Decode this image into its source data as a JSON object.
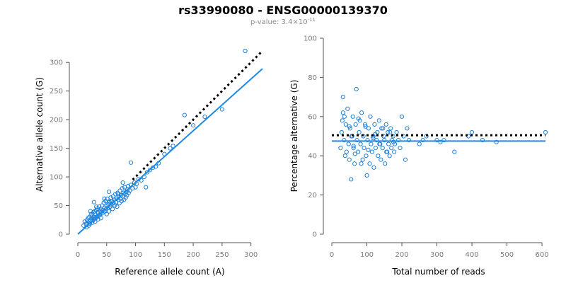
{
  "title": "rs33990080 - ENSG00000139370",
  "subtitle": {
    "prefix": "p-value: 3.4×10",
    "exponent": "-11"
  },
  "colors": {
    "points": "#1e7fd6",
    "fit": "#1e88e5",
    "reference": "#000000"
  },
  "chart_data": [
    {
      "type": "scatter",
      "xlabel": "Reference allele count (A)",
      "ylabel": "Alternative allele count (G)",
      "xlim": [
        0,
        320
      ],
      "ylim": [
        0,
        320
      ],
      "xticks": [
        0,
        50,
        100,
        150,
        200,
        250,
        300
      ],
      "yticks": [
        0,
        50,
        100,
        150,
        200,
        250,
        300
      ],
      "grid": false,
      "points": {
        "x": [
          10,
          12,
          14,
          15,
          16,
          17,
          18,
          19,
          20,
          20,
          21,
          22,
          23,
          24,
          25,
          25,
          26,
          27,
          28,
          28,
          29,
          30,
          30,
          31,
          32,
          33,
          34,
          35,
          35,
          36,
          37,
          38,
          39,
          40,
          40,
          41,
          42,
          43,
          44,
          45,
          46,
          47,
          48,
          49,
          50,
          50,
          51,
          52,
          53,
          54,
          55,
          56,
          57,
          58,
          59,
          60,
          61,
          62,
          63,
          64,
          65,
          66,
          67,
          68,
          69,
          70,
          71,
          72,
          73,
          74,
          75,
          76,
          77,
          78,
          79,
          80,
          81,
          82,
          83,
          84,
          85,
          86,
          87,
          88,
          90,
          92,
          95,
          98,
          100,
          102,
          105,
          110,
          115,
          120,
          125,
          130,
          135,
          140,
          150,
          160,
          165,
          185,
          200,
          220,
          250,
          290,
          28,
          32,
          22,
          46,
          54,
          58,
          70,
          78,
          92,
          118
        ],
        "y": [
          15,
          22,
          18,
          12,
          25,
          20,
          28,
          15,
          22,
          30,
          18,
          25,
          35,
          28,
          20,
          32,
          24,
          38,
          26,
          30,
          40,
          22,
          36,
          28,
          42,
          30,
          45,
          26,
          38,
          32,
          48,
          34,
          40,
          28,
          44,
          36,
          50,
          42,
          38,
          55,
          46,
          40,
          58,
          44,
          35,
          50,
          62,
          46,
          52,
          40,
          56,
          48,
          64,
          52,
          58,
          44,
          66,
          54,
          60,
          50,
          70,
          56,
          62,
          48,
          72,
          60,
          66,
          54,
          76,
          62,
          68,
          58,
          80,
          66,
          72,
          60,
          82,
          70,
          64,
          74,
          68,
          78,
          84,
          72,
          76,
          86,
          80,
          90,
          82,
          88,
          96,
          94,
          100,
          108,
          112,
          116,
          118,
          124,
          140,
          150,
          154,
          208,
          190,
          205,
          218,
          320,
          56,
          48,
          40,
          62,
          74,
          58,
          70,
          90,
          125,
          82
        ]
      },
      "fit_line": {
        "x": [
          0,
          320
        ],
        "y": [
          0,
          289
        ]
      },
      "reference_line": {
        "x": [
          95,
          320
        ],
        "y": [
          95,
          320
        ]
      }
    },
    {
      "type": "scatter",
      "xlabel": "Total number of reads",
      "ylabel": "Percentage alternative (G)",
      "xlim": [
        0,
        610
      ],
      "ylim": [
        0,
        100
      ],
      "xticks": [
        0,
        100,
        200,
        300,
        400,
        500,
        600
      ],
      "yticks": [
        0,
        20,
        40,
        60,
        80,
        100
      ],
      "grid": false,
      "points": {
        "x": [
          25,
          28,
          30,
          32,
          35,
          38,
          40,
          42,
          45,
          48,
          50,
          52,
          55,
          58,
          60,
          62,
          65,
          68,
          70,
          72,
          75,
          78,
          80,
          82,
          85,
          88,
          90,
          92,
          95,
          98,
          100,
          102,
          105,
          108,
          110,
          112,
          115,
          118,
          120,
          122,
          125,
          128,
          130,
          132,
          135,
          138,
          140,
          142,
          145,
          148,
          150,
          152,
          155,
          158,
          160,
          162,
          165,
          168,
          170,
          172,
          175,
          178,
          180,
          185,
          190,
          195,
          200,
          205,
          210,
          215,
          220,
          250,
          260,
          270,
          300,
          310,
          320,
          350,
          390,
          400,
          430,
          470,
          610,
          32,
          36,
          50,
          56,
          62,
          66,
          76,
          84,
          96,
          104,
          118,
          124,
          136,
          146,
          156,
          166,
          176
        ],
        "y": [
          44,
          52,
          58,
          62,
          48,
          40,
          56,
          42,
          64,
          46,
          38,
          54,
          28,
          50,
          60,
          44,
          36,
          56,
          74,
          48,
          42,
          52,
          58,
          46,
          62,
          38,
          50,
          44,
          56,
          40,
          30,
          48,
          54,
          36,
          60,
          46,
          42,
          50,
          34,
          56,
          44,
          48,
          52,
          40,
          58,
          46,
          38,
          54,
          44,
          50,
          48,
          36,
          56,
          42,
          52,
          46,
          40,
          54,
          44,
          48,
          50,
          42,
          46,
          52,
          48,
          44,
          60,
          50,
          38,
          54,
          48,
          46,
          48,
          50,
          48,
          47,
          48,
          42,
          50,
          52,
          48,
          47,
          52,
          70,
          60,
          55,
          50,
          45,
          41,
          59,
          36,
          55,
          43,
          49,
          51,
          46,
          54,
          42,
          52,
          47
        ],
        "coords_note": ""
      },
      "fit_line": {
        "x": [
          0,
          610
        ],
        "y": [
          47.5,
          47.5
        ]
      },
      "reference_line": {
        "x": [
          0,
          610
        ],
        "y": [
          50.5,
          50.5
        ]
      }
    }
  ]
}
